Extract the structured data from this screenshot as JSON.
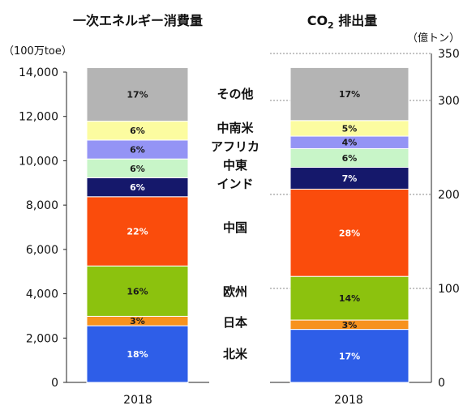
{
  "chart_data": [
    {
      "type": "bar",
      "stacked": true,
      "title": "一次エネルギー消費量",
      "unit_label": "（100万toe）",
      "categories": [
        "2018"
      ],
      "total": 14200,
      "ylim": [
        0,
        14000
      ],
      "yticks": [
        {
          "value": 0,
          "label": "0"
        },
        {
          "value": 2000,
          "label": "2,000"
        },
        {
          "value": 4000,
          "label": "4,000"
        },
        {
          "value": 6000,
          "label": "6,000"
        },
        {
          "value": 8000,
          "label": "8,000"
        },
        {
          "value": 10000,
          "label": "10,000"
        },
        {
          "value": 12000,
          "label": "12,000"
        },
        {
          "value": 14000,
          "label": "14,000"
        }
      ],
      "segments": [
        {
          "name": "北米",
          "pct_label": "18%",
          "value": 18,
          "color": "#2e5ee8",
          "text_color": "#ffffff"
        },
        {
          "name": "日本",
          "pct_label": "3%",
          "value": 3,
          "color": "#f7921e",
          "text_color": "#1a1a1a"
        },
        {
          "name": "欧州",
          "pct_label": "16%",
          "value": 16,
          "color": "#8cc20e",
          "text_color": "#1a1a1a"
        },
        {
          "name": "中国",
          "pct_label": "22%",
          "value": 22,
          "color": "#fa4c0c",
          "text_color": "#ffffff"
        },
        {
          "name": "インド",
          "pct_label": "6%",
          "value": 6,
          "color": "#15186b",
          "text_color": "#ffffff"
        },
        {
          "name": "中東",
          "pct_label": "6%",
          "value": 6,
          "color": "#c8f5c8",
          "text_color": "#1a1a1a"
        },
        {
          "name": "アフリカ",
          "pct_label": "6%",
          "value": 6,
          "color": "#9494f5",
          "text_color": "#1a1a1a"
        },
        {
          "name": "中南米",
          "pct_label": "6%",
          "value": 6,
          "color": "#fcfca0",
          "text_color": "#1a1a1a"
        },
        {
          "name": "その他",
          "pct_label": "17%",
          "value": 17,
          "color": "#b4b4b4",
          "text_color": "#1a1a1a"
        }
      ]
    },
    {
      "type": "bar",
      "stacked": true,
      "title_main": "CO",
      "title_sub": "2",
      "title_rest": " 排出量",
      "unit_label": "（億トン）",
      "categories": [
        "2018"
      ],
      "total": 335,
      "ylim": [
        0,
        350
      ],
      "yticks": [
        {
          "value": 0,
          "label": "0"
        },
        {
          "value": 100,
          "label": "100"
        },
        {
          "value": 200,
          "label": "200"
        },
        {
          "value": 300,
          "label": "300"
        },
        {
          "value": 350,
          "label": "350"
        }
      ],
      "segments": [
        {
          "name": "北米",
          "pct_label": "17%",
          "value": 17,
          "color": "#2e5ee8",
          "text_color": "#ffffff"
        },
        {
          "name": "日本",
          "pct_label": "3%",
          "value": 3,
          "color": "#f7921e",
          "text_color": "#1a1a1a"
        },
        {
          "name": "欧州",
          "pct_label": "14%",
          "value": 14,
          "color": "#8cc20e",
          "text_color": "#1a1a1a"
        },
        {
          "name": "中国",
          "pct_label": "28%",
          "value": 28,
          "color": "#fa4c0c",
          "text_color": "#ffffff"
        },
        {
          "name": "インド",
          "pct_label": "7%",
          "value": 7,
          "color": "#15186b",
          "text_color": "#ffffff"
        },
        {
          "name": "中東",
          "pct_label": "6%",
          "value": 6,
          "color": "#c8f5c8",
          "text_color": "#1a1a1a"
        },
        {
          "name": "アフリカ",
          "pct_label": "4%",
          "value": 4,
          "color": "#9494f5",
          "text_color": "#1a1a1a"
        },
        {
          "name": "中南米",
          "pct_label": "5%",
          "value": 5,
          "color": "#fcfca0",
          "text_color": "#1a1a1a"
        },
        {
          "name": "その他",
          "pct_label": "17%",
          "value": 17,
          "color": "#b4b4b4",
          "text_color": "#1a1a1a"
        }
      ]
    }
  ],
  "region_labels": [
    "その他",
    "中南米",
    "アフリカ",
    "中東",
    "インド",
    "中国",
    "欧州",
    "日本",
    "北米"
  ],
  "colors": {
    "axis": "#222222",
    "tick_text": "#111111",
    "grid_line": "#8a8a8a",
    "background": "#ffffff"
  }
}
